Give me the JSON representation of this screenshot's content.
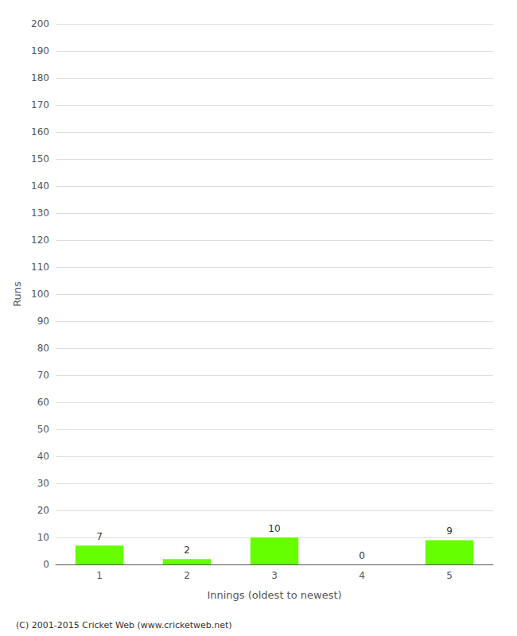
{
  "chart_data": {
    "type": "bar",
    "xlabel": "Innings (oldest to newest)",
    "ylabel": "Runs",
    "categories": [
      "1",
      "2",
      "3",
      "4",
      "5"
    ],
    "values": [
      7,
      2,
      10,
      0,
      9
    ],
    "color": "#66ff00",
    "ylim": [
      0,
      200
    ],
    "yticks": [
      0,
      10,
      20,
      30,
      40,
      50,
      60,
      70,
      80,
      90,
      100,
      110,
      120,
      130,
      140,
      150,
      160,
      170,
      180,
      190,
      200
    ],
    "grid": true,
    "data_labels": true,
    "annotation": "(C) 2001-2015 Cricket Web (www.cricketweb.net)"
  }
}
